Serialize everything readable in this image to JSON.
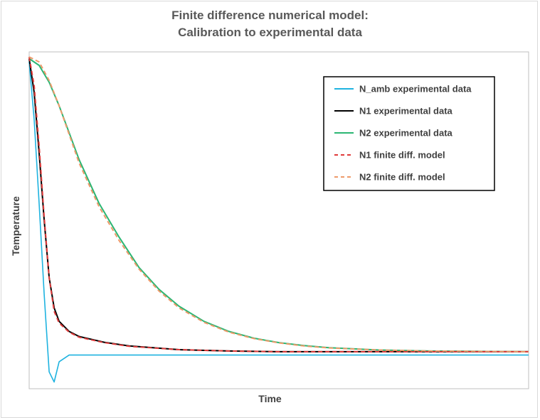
{
  "chart_data": {
    "type": "line",
    "title": "Finite difference numerical model:",
    "subtitle": "Calibration to experimental data",
    "xlabel": "Time",
    "ylabel": "Temperature",
    "xlim": [
      0,
      100
    ],
    "ylim": [
      0,
      100
    ],
    "grid": false,
    "legend_position": "top-right",
    "series": [
      {
        "name": "N_amb experimental data",
        "color": "#1fb3e0",
        "style": "solid",
        "x": [
          0,
          1,
          2,
          3,
          4,
          5,
          6,
          8,
          12,
          20,
          40,
          60,
          80,
          100
        ],
        "y": [
          97,
          80,
          55,
          28,
          5,
          2,
          8,
          10,
          10,
          10,
          10,
          10,
          10,
          10
        ]
      },
      {
        "name": "N1 experimental data",
        "color": "#000000",
        "style": "solid",
        "x": [
          0,
          1,
          2,
          3,
          4,
          5,
          6,
          8,
          10,
          15,
          20,
          30,
          40,
          50,
          60,
          80,
          100
        ],
        "y": [
          98,
          88,
          70,
          50,
          33,
          24,
          20,
          17,
          15.5,
          13.8,
          12.7,
          11.6,
          11.2,
          11,
          11,
          11,
          11
        ]
      },
      {
        "name": "N2 experimental data",
        "color": "#2bb673",
        "style": "solid",
        "x": [
          0,
          2,
          4,
          6,
          8,
          10,
          14,
          18,
          22,
          26,
          30,
          35,
          40,
          45,
          50,
          55,
          60,
          70,
          80,
          90,
          100
        ],
        "y": [
          98,
          96,
          91,
          84,
          76,
          68,
          55,
          45,
          36,
          29.5,
          24.5,
          20,
          17,
          15,
          13.7,
          12.8,
          12.2,
          11.5,
          11.2,
          11.1,
          11
        ]
      },
      {
        "name": "N1 finite diff. model",
        "color": "#e03b3b",
        "style": "dashed",
        "x": [
          0,
          1,
          2,
          3,
          4,
          5,
          6,
          8,
          10,
          15,
          20,
          30,
          40,
          50,
          60,
          80,
          100
        ],
        "y": [
          98.5,
          90,
          72,
          51,
          33,
          23,
          19.5,
          16.8,
          15.3,
          13.7,
          12.6,
          11.6,
          11.2,
          11,
          11,
          11,
          11
        ]
      },
      {
        "name": "N2 finite diff. model",
        "color": "#ee9a6a",
        "style": "dashed",
        "x": [
          0,
          2,
          4,
          6,
          8,
          10,
          14,
          18,
          22,
          26,
          30,
          35,
          40,
          45,
          50,
          55,
          60,
          70,
          80,
          90,
          100
        ],
        "y": [
          98.5,
          97,
          91.5,
          84,
          75.5,
          67,
          54,
          44,
          35.5,
          29,
          24,
          19.7,
          16.8,
          14.9,
          13.6,
          12.7,
          12.1,
          11.5,
          11.2,
          11.1,
          11
        ]
      }
    ]
  }
}
